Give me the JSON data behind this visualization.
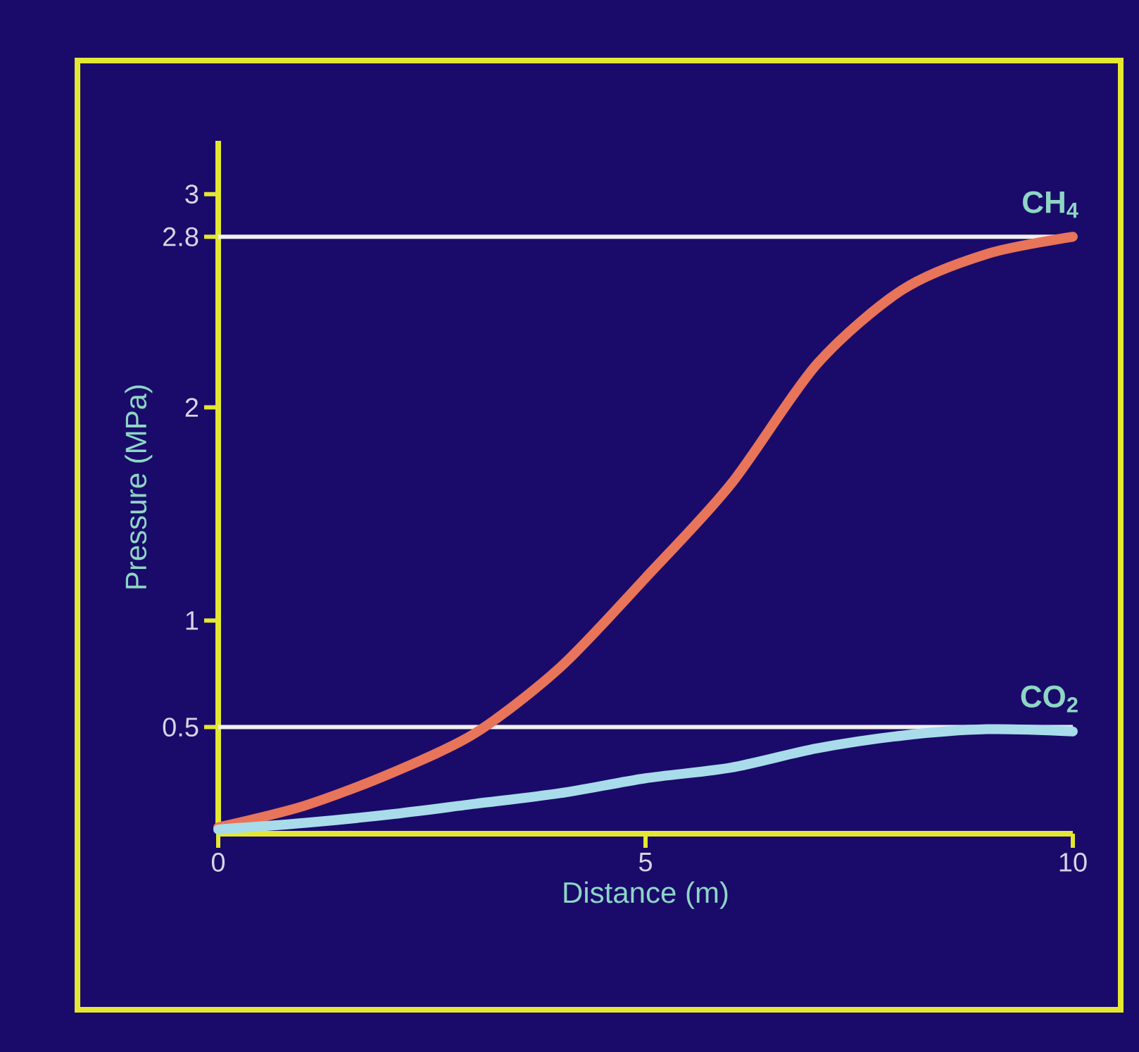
{
  "chart_data": {
    "type": "line",
    "xlabel": "Distance (m)",
    "ylabel": "Pressure (MPa)",
    "xlim": [
      0,
      10
    ],
    "ylim": [
      0,
      3.25
    ],
    "xticks": [
      0,
      5,
      10
    ],
    "yticks": [
      0.5,
      1,
      2,
      2.8,
      3
    ],
    "series": [
      {
        "name": "CH$_{4}$",
        "color": "#e8745a",
        "x": [
          0,
          1,
          2,
          3,
          4,
          5,
          6,
          7,
          8,
          9,
          10
        ],
        "values": [
          0.03,
          0.13,
          0.28,
          0.47,
          0.78,
          1.2,
          1.64,
          2.2,
          2.55,
          2.72,
          2.8
        ]
      },
      {
        "name": "CO$_{2}$",
        "color": "#a8dcea",
        "x": [
          0,
          1,
          2,
          3,
          4,
          5,
          6,
          7,
          8,
          9,
          10
        ],
        "values": [
          0.02,
          0.05,
          0.09,
          0.14,
          0.19,
          0.26,
          0.31,
          0.4,
          0.46,
          0.49,
          0.48
        ]
      }
    ],
    "ref_lines": [
      {
        "axis": "y",
        "value": 2.8,
        "color": "#f0f0f0"
      },
      {
        "axis": "y",
        "value": 0.5,
        "color": "#f0f0f0"
      }
    ]
  }
}
